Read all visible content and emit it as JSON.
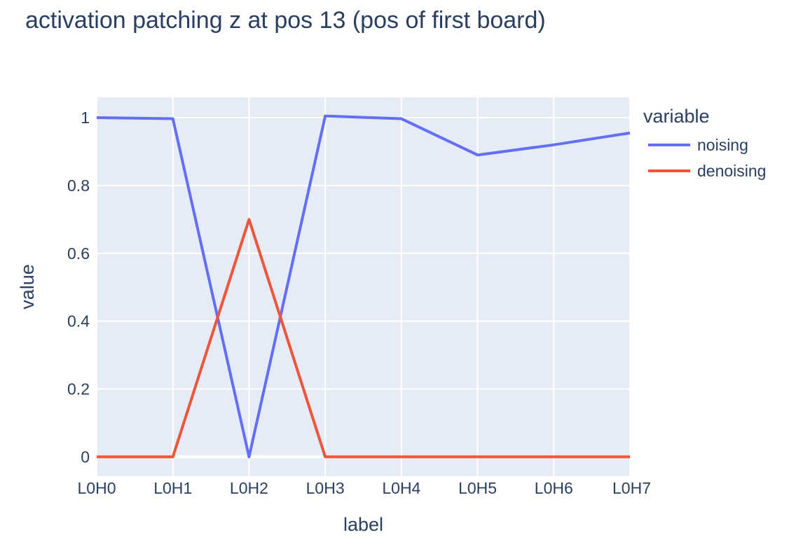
{
  "chart_data": {
    "type": "line",
    "title": "activation patching z at pos 13 (pos of first board)",
    "xlabel": "label",
    "ylabel": "value",
    "categories": [
      "L0H0",
      "L0H1",
      "L0H2",
      "L0H3",
      "L0H4",
      "L0H5",
      "L0H6",
      "L0H7"
    ],
    "ylim": [
      -0.057,
      1.06
    ],
    "yticks": [
      0,
      0.2,
      0.4,
      0.6,
      0.8,
      1
    ],
    "ytick_labels": [
      "0",
      "0.2",
      "0.4",
      "0.6",
      "0.8",
      "1"
    ],
    "grid": true,
    "legend": {
      "title": "variable",
      "position": "right"
    },
    "series": [
      {
        "name": "noising",
        "color": "#636efa",
        "values": [
          1.0,
          0.997,
          0.0,
          1.005,
          0.997,
          0.89,
          0.92,
          0.955
        ]
      },
      {
        "name": "denoising",
        "color": "#ef553b",
        "values": [
          0.0,
          0.0,
          0.7,
          0.0,
          0.0,
          0.0,
          0.0,
          0.0
        ]
      }
    ],
    "plot_bg": "#e5ecf6",
    "grid_color": "#ffffff",
    "text_color": "#2a3f5f"
  }
}
